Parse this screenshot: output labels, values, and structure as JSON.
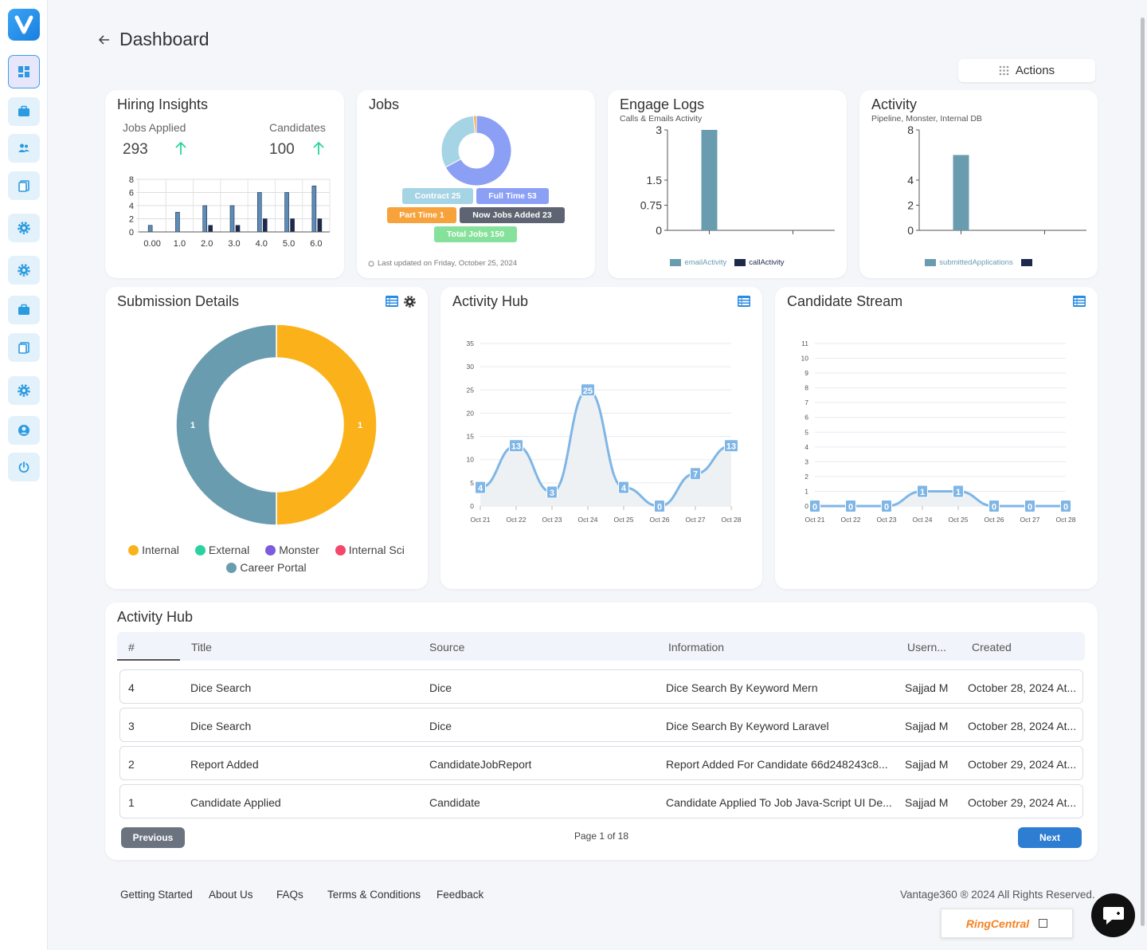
{
  "page": {
    "title": "Dashboard",
    "actions_label": "Actions"
  },
  "hiring_insights": {
    "title": "Hiring Insights",
    "jobs_applied_label": "Jobs Applied",
    "jobs_applied_value": "293",
    "candidates_label": "Candidates",
    "candidates_value": "100"
  },
  "jobs": {
    "title": "Jobs",
    "pills": [
      {
        "label": "Contract 25",
        "color": "#a5d4e4"
      },
      {
        "label": "Full Time 53",
        "color": "#8b9ff5"
      },
      {
        "label": "Part Time 1",
        "color": "#f7a23b"
      },
      {
        "label": "Now Jobs Added 23",
        "color": "#5f6472"
      },
      {
        "label": "Total Jobs 150",
        "color": "#86e29b"
      }
    ],
    "last_updated": "Last updated on Friday, October 25, 2024"
  },
  "engage_logs": {
    "title": "Engage Logs",
    "subtitle": "Calls & Emails Activity",
    "legend": [
      "emailActivity",
      "callActivity"
    ]
  },
  "activity": {
    "title": "Activity",
    "subtitle": "Pipeline, Monster, Internal DB",
    "legend": [
      "submittedApplications"
    ]
  },
  "submission_details": {
    "title": "Submission Details",
    "legend": [
      {
        "label": "Internal",
        "color": "#fbb21a"
      },
      {
        "label": "External",
        "color": "#2ad2a0"
      },
      {
        "label": "Monster",
        "color": "#7a5cdc"
      },
      {
        "label": "Internal Sci",
        "color": "#f4476a"
      },
      {
        "label": "Career Portal",
        "color": "#6a9cb0"
      }
    ]
  },
  "activity_hub_chart": {
    "title": "Activity Hub"
  },
  "candidate_stream": {
    "title": "Candidate Stream"
  },
  "chart_data": [
    {
      "type": "bar",
      "categories": [
        "0.00",
        "1.0",
        "2.0",
        "3.0",
        "4.0",
        "5.0",
        "6.0"
      ],
      "series": [
        {
          "values": [
            1,
            3,
            4,
            4,
            6,
            6,
            7
          ],
          "color": "#5b8db8"
        },
        {
          "values": [
            0,
            0,
            1,
            1,
            2,
            2,
            2
          ],
          "color": "#1e2a4a"
        }
      ],
      "yticks": [
        "0",
        "2",
        "4",
        "6",
        "8"
      ],
      "ylim": [
        0,
        8
      ]
    },
    {
      "type": "pie",
      "labels": [
        "Full Time",
        "Contract",
        "Part Time"
      ],
      "values": [
        53,
        25,
        1
      ],
      "colors": [
        "#8b9ff5",
        "#a5d4e4",
        "#f7a23b"
      ]
    },
    {
      "type": "bar",
      "title": "Engage Logs",
      "categories": [
        "",
        ""
      ],
      "series": [
        {
          "name": "emailActivity",
          "values": [
            3,
            0
          ],
          "color": "#6a9cb0"
        },
        {
          "name": "callActivity",
          "values": [
            0,
            0
          ],
          "color": "#1e2a4a"
        }
      ],
      "yticks": [
        "0",
        "0.75",
        "1.5",
        "3"
      ],
      "ylim": [
        0,
        3
      ]
    },
    {
      "type": "bar",
      "title": "Activity",
      "categories": [
        "",
        ""
      ],
      "series": [
        {
          "name": "submittedApplications",
          "values": [
            6,
            0
          ],
          "color": "#6a9cb0"
        }
      ],
      "yticks": [
        "0",
        "2",
        "4",
        "8"
      ],
      "ylim": [
        0,
        8
      ]
    },
    {
      "type": "pie",
      "title": "Submission Details",
      "labels": [
        "Internal",
        "Career Portal"
      ],
      "values": [
        1,
        1
      ],
      "colors": [
        "#fbb21a",
        "#6a9cb0"
      ]
    },
    {
      "type": "line",
      "title": "Activity Hub",
      "x": [
        "Oct 21",
        "Oct 22",
        "Oct 23",
        "Oct 24",
        "Oct 25",
        "Oct 26",
        "Oct 27",
        "Oct 28"
      ],
      "values": [
        4,
        13,
        3,
        25,
        4,
        0,
        7,
        13
      ],
      "yticks": [
        "0",
        "5",
        "10",
        "15",
        "20",
        "25",
        "30",
        "35"
      ],
      "ylim": [
        0,
        35
      ]
    },
    {
      "type": "line",
      "title": "Candidate Stream",
      "x": [
        "Oct 21",
        "Oct 22",
        "Oct 23",
        "Oct 24",
        "Oct 25",
        "Oct 26",
        "Oct 27",
        "Oct 28"
      ],
      "values": [
        0,
        0,
        0,
        1,
        1,
        0,
        0,
        0
      ],
      "yticks": [
        "0",
        "1",
        "2",
        "3",
        "4",
        "5",
        "6",
        "7",
        "8",
        "9",
        "10",
        "11"
      ],
      "ylim": [
        0,
        11
      ]
    }
  ],
  "table": {
    "title": "Activity Hub",
    "headers": [
      "#",
      "Title",
      "Source",
      "Information",
      "Usern...",
      "Created"
    ],
    "rows": [
      {
        "num": "4",
        "title": "Dice Search",
        "source": "Dice",
        "information": "Dice Search By Keyword Mern",
        "user": "Sajjad M",
        "created": "October 28, 2024 At..."
      },
      {
        "num": "3",
        "title": "Dice Search",
        "source": "Dice",
        "information": "Dice Search By Keyword Laravel",
        "user": "Sajjad M",
        "created": "October 28, 2024 At..."
      },
      {
        "num": "2",
        "title": "Report Added",
        "source": "CandidateJobReport",
        "information": "Report Added For Candidate 66d248243c8...",
        "user": "Sajjad M",
        "created": "October 29, 2024 At..."
      },
      {
        "num": "1",
        "title": "Candidate Applied",
        "source": "Candidate",
        "information": "Candidate Applied To Job Java-Script UI De...",
        "user": "Sajjad M",
        "created": "October 29, 2024 At..."
      }
    ],
    "previous_label": "Previous",
    "next_label": "Next",
    "page_info": "Page 1 of 18"
  },
  "footer": {
    "links": [
      "Getting Started",
      "About Us",
      "FAQs",
      "Terms & Conditions",
      "Feedback"
    ],
    "copyright": "Vantage360 ® 2024 All Rights Reserved.",
    "ringcentral": "RingCentral"
  },
  "icons": {
    "sidebar": [
      "dashboard-icon",
      "briefcase-icon",
      "users-icon",
      "documents-icon",
      "gear-icon",
      "gear-icon",
      "briefcase-icon",
      "documents-icon",
      "gear-icon",
      "user-circle-icon",
      "power-icon"
    ]
  }
}
